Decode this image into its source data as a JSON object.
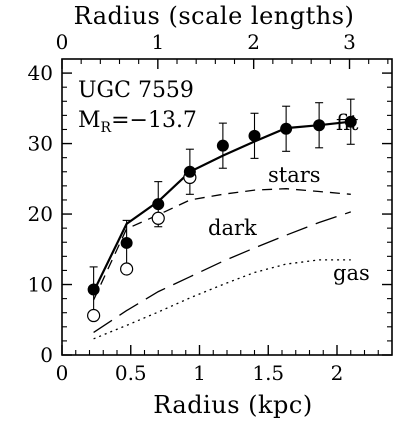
{
  "chart_data": {
    "type": "scatter",
    "title_bottom_axis": "Radius (kpc)",
    "title_top_axis": "Radius (scale lengths)",
    "ylabel": "",
    "xlim": [
      0,
      2.4
    ],
    "ylim": [
      0,
      42
    ],
    "x_ticks": [
      "0",
      "0.5",
      "1",
      "1.5",
      "2"
    ],
    "x_tick_values": [
      0,
      0.5,
      1,
      1.5,
      2
    ],
    "y_ticks": [
      "0",
      "10",
      "20",
      "30",
      "40"
    ],
    "y_tick_values": [
      0,
      10,
      20,
      30,
      40
    ],
    "top_ticks": [
      "0",
      "1",
      "2",
      "3"
    ],
    "top_tick_values_kpc": [
      0,
      0.697,
      1.394,
      2.091
    ],
    "annotations": {
      "galaxy": "UGC 7559",
      "mag_base": "M",
      "mag_sub": "R",
      "mag_value": "=−13.7",
      "fit": "fit",
      "stars": "stars",
      "dark": "dark",
      "gas": "gas"
    },
    "observed": {
      "x": [
        0.23,
        0.47,
        0.7,
        0.93,
        1.17,
        1.4,
        1.63,
        1.87,
        2.1
      ],
      "y": [
        9.3,
        15.9,
        21.4,
        26.0,
        29.7,
        31.1,
        32.1,
        32.6,
        33.1
      ],
      "err": [
        3.2,
        3.2,
        3.2,
        3.2,
        3.2,
        3.2,
        3.2,
        3.2,
        3.2
      ]
    },
    "open_points": {
      "x": [
        0.23,
        0.47,
        0.7,
        0.93
      ],
      "y": [
        5.6,
        12.2,
        19.4,
        25.2
      ]
    },
    "series": [
      {
        "name": "fit",
        "x": [
          0.23,
          0.47,
          0.7,
          0.93,
          1.17,
          1.4,
          1.63,
          1.87,
          2.1
        ],
        "y": [
          9.0,
          18.6,
          21.8,
          26.0,
          28.3,
          30.3,
          32.2,
          32.6,
          33.1
        ],
        "style": "solid"
      },
      {
        "name": "stars",
        "x": [
          0.23,
          0.47,
          0.7,
          0.93,
          1.17,
          1.4,
          1.63,
          1.87,
          2.1
        ],
        "y": [
          7.8,
          17.9,
          19.9,
          22.0,
          22.8,
          23.4,
          23.6,
          23.2,
          22.8
        ],
        "style": "short-dash"
      },
      {
        "name": "dark",
        "x": [
          0.23,
          0.47,
          0.7,
          0.93,
          1.17,
          1.4,
          1.63,
          1.87,
          2.1
        ],
        "y": [
          3.2,
          6.3,
          9.0,
          11.1,
          13.3,
          15.2,
          17.0,
          18.8,
          20.3
        ],
        "style": "long-dash"
      },
      {
        "name": "gas",
        "x": [
          0.23,
          0.47,
          0.7,
          0.93,
          1.17,
          1.4,
          1.63,
          1.87,
          2.1
        ],
        "y": [
          2.3,
          4.2,
          6.1,
          8.1,
          10.0,
          11.7,
          12.9,
          13.5,
          13.5
        ],
        "style": "dotted"
      }
    ]
  }
}
